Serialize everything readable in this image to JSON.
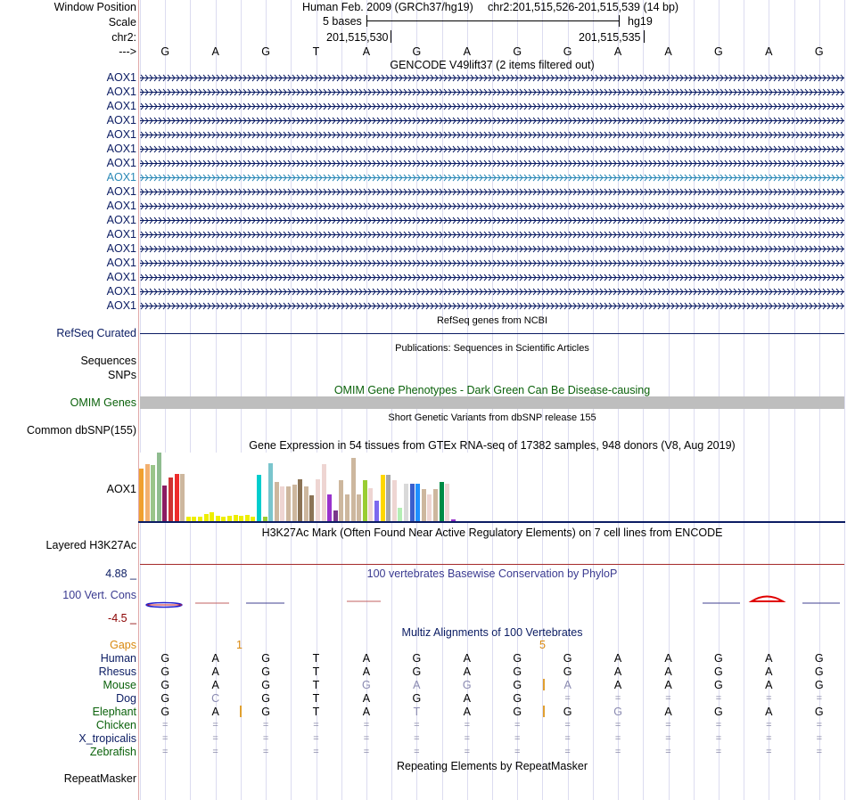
{
  "header": {
    "window_position_label": "Window Position",
    "assembly": "Human Feb. 2009 (GRCh37/hg19)",
    "position": "chr2:201,515,526-201,515,539 (14 bp)",
    "scale_label": "Scale",
    "scale_text": "5 bases",
    "scale_db": "hg19",
    "chrom_label": "chr2:",
    "coord_1": "201,515,530",
    "coord_2": "201,515,535",
    "strand_label": "--->"
  },
  "sequence": [
    "G",
    "A",
    "G",
    "T",
    "A",
    "G",
    "A",
    "G",
    "G",
    "A",
    "A",
    "G",
    "A",
    "G"
  ],
  "gencode": {
    "title": "GENCODE V49lift37 (2 items filtered out)",
    "rows": [
      "AOX1",
      "AOX1",
      "AOX1",
      "AOX1",
      "AOX1",
      "AOX1",
      "AOX1",
      "AOX1",
      "AOX1",
      "AOX1",
      "AOX1",
      "AOX1",
      "AOX1",
      "AOX1",
      "AOX1",
      "AOX1",
      "AOX1"
    ],
    "highlight_index": 7,
    "colors": {
      "normal": "#0b1c63",
      "highlight": "#2a88b6"
    }
  },
  "refseq": {
    "title": "RefSeq genes from NCBI",
    "label": "RefSeq Curated"
  },
  "publications": {
    "title": "Publications: Sequences in Scientific Articles",
    "label_1": "Sequences",
    "label_2": "SNPs"
  },
  "omim": {
    "title": "OMIM Gene Phenotypes - Dark Green Can Be Disease-causing",
    "label": "OMIM Genes",
    "bar_color": "#bebebe"
  },
  "dbsnp": {
    "title": "Short Genetic Variants from dbSNP release 155",
    "label": "Common dbSNP(155)"
  },
  "gtex": {
    "title": "Gene Expression in 54 tissues from GTEx RNA-seq of 17382 samples, 948 donors (V8, Aug 2019)",
    "label": "AOX1",
    "bars": [
      {
        "v": 0.75,
        "c": "#f0a030"
      },
      {
        "v": 0.82,
        "c": "#f2b070"
      },
      {
        "v": 0.81,
        "c": "#9ac58a"
      },
      {
        "v": 0.99,
        "c": "#8fbc8f"
      },
      {
        "v": 0.51,
        "c": "#8b1c62"
      },
      {
        "v": 0.63,
        "c": "#cd3333"
      },
      {
        "v": 0.68,
        "c": "#ee2c2c"
      },
      {
        "v": 0.68,
        "c": "#cdb79e"
      },
      {
        "v": 0.06,
        "c": "#eeee00"
      },
      {
        "v": 0.06,
        "c": "#eeee00"
      },
      {
        "v": 0.06,
        "c": "#eeee00"
      },
      {
        "v": 0.1,
        "c": "#eeee00"
      },
      {
        "v": 0.13,
        "c": "#eeee00"
      },
      {
        "v": 0.08,
        "c": "#eeee00"
      },
      {
        "v": 0.06,
        "c": "#eeee00"
      },
      {
        "v": 0.08,
        "c": "#eeee00"
      },
      {
        "v": 0.09,
        "c": "#eeee00"
      },
      {
        "v": 0.08,
        "c": "#eeee00"
      },
      {
        "v": 0.09,
        "c": "#eeee00"
      },
      {
        "v": 0.07,
        "c": "#eeee00"
      },
      {
        "v": 0.67,
        "c": "#00cdcd"
      },
      {
        "v": 0.06,
        "c": "#9acd32"
      },
      {
        "v": 0.83,
        "c": "#7ac5cd"
      },
      {
        "v": 0.56,
        "c": "#cdb79e"
      },
      {
        "v": 0.5,
        "c": "#eed5d2"
      },
      {
        "v": 0.5,
        "c": "#cdb79e"
      },
      {
        "v": 0.53,
        "c": "#cdb79e"
      },
      {
        "v": 0.6,
        "c": "#8b7355"
      },
      {
        "v": 0.5,
        "c": "#cdb79e"
      },
      {
        "v": 0.37,
        "c": "#8b7355"
      },
      {
        "v": 0.6,
        "c": "#eed5d2"
      },
      {
        "v": 0.82,
        "c": "#eed5d2"
      },
      {
        "v": 0.38,
        "c": "#9932cc"
      },
      {
        "v": 0.15,
        "c": "#7a378b"
      },
      {
        "v": 0.59,
        "c": "#cdb79e"
      },
      {
        "v": 0.38,
        "c": "#cdb79e"
      },
      {
        "v": 0.91,
        "c": "#cdb79e"
      },
      {
        "v": 0.38,
        "c": "#cdb79e"
      },
      {
        "v": 0.59,
        "c": "#9acd32"
      },
      {
        "v": 0.47,
        "c": "#eed5d2"
      },
      {
        "v": 0.3,
        "c": "#7b68ee"
      },
      {
        "v": 0.67,
        "c": "#ffd700"
      },
      {
        "v": 0.67,
        "c": "#a6a6a6"
      },
      {
        "v": 0.59,
        "c": "#eed5d2"
      },
      {
        "v": 0.19,
        "c": "#b4eeb4"
      },
      {
        "v": 0.54,
        "c": "#d9d9d9"
      },
      {
        "v": 0.54,
        "c": "#3a5fcd"
      },
      {
        "v": 0.54,
        "c": "#1e90ff"
      },
      {
        "v": 0.46,
        "c": "#cdb79e"
      },
      {
        "v": 0.38,
        "c": "#eed5d2"
      },
      {
        "v": 0.46,
        "c": "#cdb79e"
      },
      {
        "v": 0.56,
        "c": "#008b45"
      },
      {
        "v": 0.54,
        "c": "#eed5d2"
      },
      {
        "v": 0.02,
        "c": "#9932cc"
      }
    ]
  },
  "h3k27ac": {
    "title": "H3K27Ac Mark (Often Found Near Active Regulatory Elements) on 7 cell lines from ENCODE",
    "label": "Layered H3K27Ac",
    "line_color": "#a52a2a"
  },
  "phylop": {
    "title": "100 vertebrates Basewise Conservation by PhyloP",
    "label": "100 Vert. Cons",
    "max": "4.88 _",
    "min": "-4.5 _",
    "max_color": "#0b1c63",
    "min_color": "#8b0000"
  },
  "multiz": {
    "title": "Multiz Alignments of 100 Vertebrates",
    "gaps_label": "Gaps",
    "gap_1": "1",
    "gap_2": "5",
    "species": [
      {
        "name": "Human",
        "color": "#0b1c63",
        "seq": [
          "G",
          "A",
          "G",
          "T",
          "A",
          "G",
          "A",
          "G",
          "G",
          "A",
          "A",
          "G",
          "A",
          "G"
        ]
      },
      {
        "name": "Rhesus",
        "color": "#0b1c63",
        "seq": [
          "G",
          "A",
          "G",
          "T",
          "A",
          "G",
          "A",
          "G",
          "G",
          "A",
          "A",
          "G",
          "A",
          "G"
        ]
      },
      {
        "name": "Mouse",
        "color": "#0a610a",
        "seq": [
          "G",
          "A",
          "G",
          "T",
          "G",
          "A",
          "G",
          "G",
          "A",
          "A",
          "A",
          "G",
          "A",
          "G"
        ]
      },
      {
        "name": "Dog",
        "color": "#0b1c63",
        "seq": [
          "G",
          "C",
          "G",
          "T",
          "A",
          "G",
          "A",
          "G",
          "=",
          "=",
          "=",
          "=",
          "=",
          "="
        ]
      },
      {
        "name": "Elephant",
        "color": "#0a610a",
        "seq": [
          "G",
          "A",
          "G",
          "T",
          "A",
          "T",
          "A",
          "G",
          "G",
          "G",
          "A",
          "G",
          "A",
          "G"
        ]
      },
      {
        "name": "Chicken",
        "color": "#0a610a",
        "seq": [
          "=",
          "=",
          "=",
          "=",
          "=",
          "=",
          "=",
          "=",
          "=",
          "=",
          "=",
          "=",
          "=",
          "="
        ]
      },
      {
        "name": "X_tropicalis",
        "color": "#0b1c63",
        "seq": [
          "=",
          "=",
          "=",
          "=",
          "=",
          "=",
          "=",
          "=",
          "=",
          "=",
          "=",
          "=",
          "=",
          "="
        ]
      },
      {
        "name": "Zebrafish",
        "color": "#0a610a",
        "seq": [
          "=",
          "=",
          "=",
          "=",
          "=",
          "=",
          "=",
          "=",
          "=",
          "=",
          "=",
          "=",
          "=",
          "="
        ]
      }
    ],
    "faded": {
      "2": [
        4,
        5,
        6,
        8
      ],
      "3": [
        1
      ],
      "4": [
        5,
        9
      ]
    }
  },
  "repeatmasker": {
    "title": "Repeating Elements by RepeatMasker",
    "label": "RepeatMasker"
  }
}
